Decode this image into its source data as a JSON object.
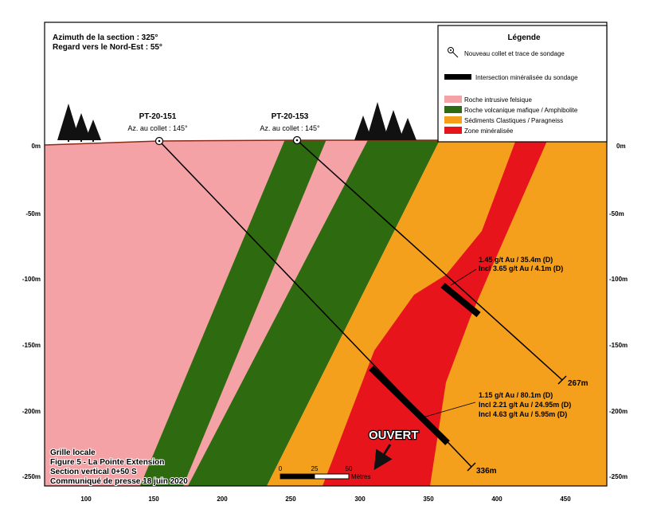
{
  "header": {
    "line1": "Azimuth de la section : 325°",
    "line2": "Regard vers le Nord-Est : 55°"
  },
  "legend": {
    "title": "Légende",
    "items": [
      {
        "type": "collar",
        "label": "Nouveau collet et trace de sondage"
      },
      {
        "type": "intersection",
        "label": "Intersection minéralisée du sondage",
        "color": "#000000"
      },
      {
        "type": "swatch",
        "label": "Roche intrusive felsique",
        "color": "#F4A2A6"
      },
      {
        "type": "swatch",
        "label": "Roche volcanique mafique / Amphibolite",
        "color": "#2E6A10"
      },
      {
        "type": "swatch",
        "label": "Sédiments Clastiques / Paragneiss",
        "color": "#F5A01C"
      },
      {
        "type": "swatch",
        "label": "Zone minéralisée",
        "color": "#E8141C"
      }
    ]
  },
  "colors": {
    "felsic": "#F4A2A6",
    "mafic": "#2E6A10",
    "sediment": "#F5A01C",
    "mineralized": "#E8141C",
    "surface_line": "#8B2A1A",
    "trees": "#111111"
  },
  "axes": {
    "y_left_labels": [
      "0m",
      "-50m",
      "-100m",
      "-150m",
      "-200m",
      "-250m"
    ],
    "y_right_labels": [
      "0m",
      "-50m",
      "-100m",
      "-150m",
      "-200m",
      "-250m"
    ],
    "x_labels": [
      "100",
      "150",
      "200",
      "250",
      "300",
      "350",
      "400",
      "450"
    ]
  },
  "holes": [
    {
      "name": "PT-20-151",
      "azimuth_label": "Az. au collet : 145°",
      "end_depth_label": "336m",
      "intercepts": [
        "1.15 g/t Au / 80.1m (D)",
        "Incl 2.21 g/t Au / 24.95m (D)",
        "Incl 4.63 g/t Au / 5.95m (D)"
      ]
    },
    {
      "name": "PT-20-153",
      "azimuth_label": "Az. au collet : 145°",
      "end_depth_label": "267m",
      "intercepts": [
        "1.45 g/t Au / 35.4m (D)",
        "Incl 3.65 g/t Au / 4.1m (D)"
      ]
    }
  ],
  "open_label": "OUVERT",
  "scale_bar": {
    "ticks": [
      "0",
      "25",
      "50"
    ],
    "unit": "Mètres"
  },
  "footer": {
    "line1": "Grille locale",
    "line2": "Figure 5 - La Pointe Extension",
    "line3": "Section vertical 0+50 S",
    "line4": "Communiqué de presse 18 juin 2020"
  }
}
